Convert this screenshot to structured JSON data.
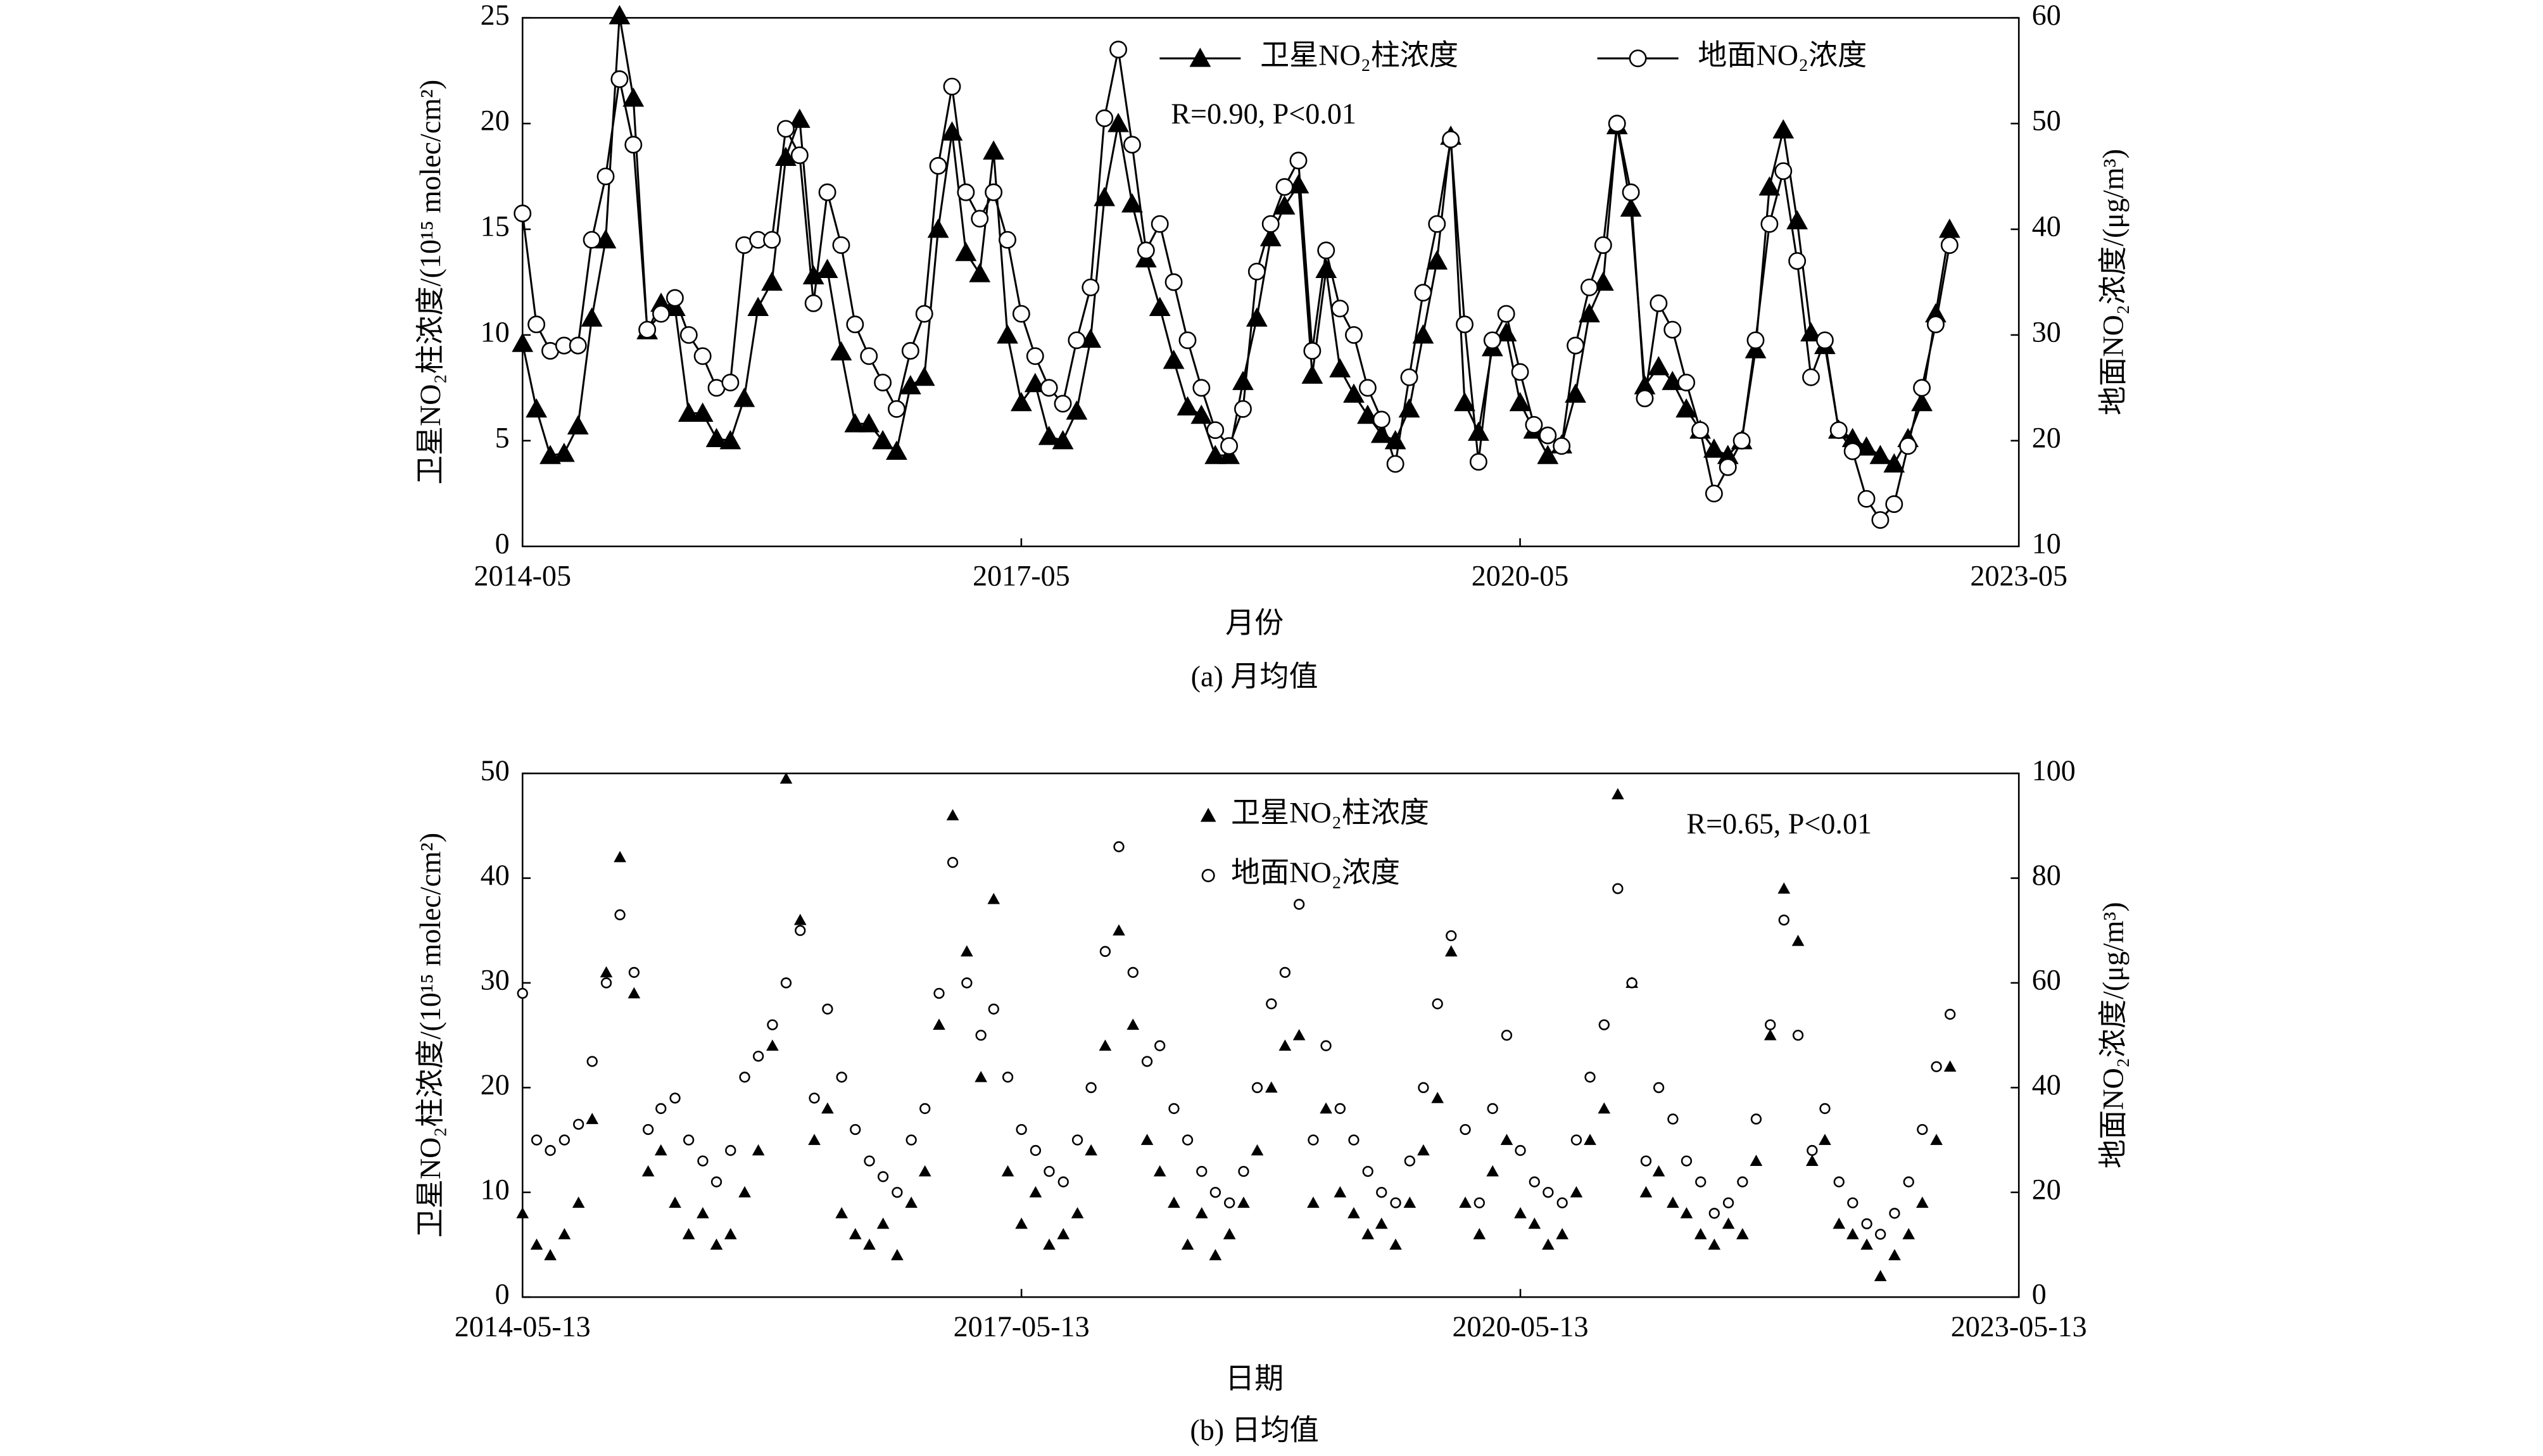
{
  "chart_data": [
    {
      "type": "line",
      "subtitle": "(a) 月均值",
      "xlabel": "月份",
      "ylabel": "卫星NO₂柱浓度/(10¹⁵ molec/cm²)",
      "y2label": "地面NO₂浓度/(μg/m³)",
      "annotation": "R=0.90, P<0.01",
      "legend": "upper center",
      "x": [
        "2014-05",
        "2014-06",
        "2014-07",
        "2014-08",
        "2014-09",
        "2014-10",
        "2014-11",
        "2014-12",
        "2015-01",
        "2015-02",
        "2015-03",
        "2015-04",
        "2015-05",
        "2015-06",
        "2015-07",
        "2015-08",
        "2015-09",
        "2015-10",
        "2015-11",
        "2015-12",
        "2016-01",
        "2016-02",
        "2016-03",
        "2016-04",
        "2016-05",
        "2016-06",
        "2016-07",
        "2016-08",
        "2016-09",
        "2016-10",
        "2016-11",
        "2016-12",
        "2017-01",
        "2017-02",
        "2017-03",
        "2017-04",
        "2017-05",
        "2017-06",
        "2017-07",
        "2017-08",
        "2017-09",
        "2017-10",
        "2017-11",
        "2017-12",
        "2018-01",
        "2018-02",
        "2018-03",
        "2018-04",
        "2018-05",
        "2018-06",
        "2018-07",
        "2018-08",
        "2018-09",
        "2018-10",
        "2018-11",
        "2018-12",
        "2019-01",
        "2019-02",
        "2019-03",
        "2019-04",
        "2019-05",
        "2019-06",
        "2019-07",
        "2019-08",
        "2019-09",
        "2019-10",
        "2019-11",
        "2019-12",
        "2020-01",
        "2020-02",
        "2020-03",
        "2020-04",
        "2020-05",
        "2020-06",
        "2020-07",
        "2020-08",
        "2020-09",
        "2020-10",
        "2020-11",
        "2020-12",
        "2021-01",
        "2021-02",
        "2021-03",
        "2021-04",
        "2021-05",
        "2021-06",
        "2021-07",
        "2021-08",
        "2021-09",
        "2021-10",
        "2021-11",
        "2021-12",
        "2022-01",
        "2022-02",
        "2022-03",
        "2022-04",
        "2022-05",
        "2022-06",
        "2022-07",
        "2022-08",
        "2022-09",
        "2022-10",
        "2022-11",
        "2022-12"
      ],
      "series": [
        {
          "name": "卫星NO₂柱浓度",
          "color": "#000000",
          "marker": "triangle",
          "values": [
            9.6,
            6.5,
            4.3,
            4.4,
            5.7,
            10.8,
            14.5,
            25.1,
            21.2,
            10.2,
            11.5,
            11.3,
            6.3,
            6.3,
            5.1,
            5.0,
            7.0,
            11.3,
            12.5,
            18.4,
            20.2,
            12.8,
            13.1,
            9.2,
            5.8,
            5.8,
            5.0,
            4.5,
            7.6,
            8.0,
            15.0,
            19.6,
            13.9,
            12.9,
            18.7,
            10.0,
            6.8,
            7.7,
            5.2,
            5.0,
            6.4,
            9.8,
            16.5,
            20.0,
            16.2,
            13.6,
            11.3,
            8.8,
            6.6,
            6.2,
            4.3,
            4.3,
            7.8,
            10.8,
            14.6,
            16.1,
            17.1,
            8.1,
            13.1,
            8.4,
            7.2,
            6.2,
            5.3,
            5.0,
            6.5,
            10.0,
            13.5,
            19.4,
            6.8,
            5.4,
            9.4,
            10.1,
            6.8,
            5.5,
            4.3,
            4.8,
            7.2,
            11.0,
            12.5,
            19.9,
            16.0,
            7.6,
            8.5,
            7.8,
            6.5,
            5.5,
            4.6,
            4.3,
            5.0,
            9.3,
            17.0,
            19.7,
            15.4,
            10.1,
            9.5,
            5.5,
            5.1,
            4.7,
            4.3,
            3.9,
            5.1,
            6.8,
            11.0,
            15.0
          ]
        },
        {
          "name": "地面NO₂浓度",
          "color": "#000000",
          "marker": "circle",
          "axis": "y2",
          "values": [
            41.5,
            31,
            28.5,
            29,
            29,
            39,
            45,
            54.2,
            48,
            30.5,
            32,
            33.5,
            30,
            28,
            25,
            25.5,
            38.5,
            39,
            39,
            49.5,
            47,
            33,
            43.5,
            38.5,
            31,
            28,
            25.5,
            23,
            28.5,
            32,
            46,
            53.5,
            43.5,
            41,
            43.5,
            39,
            32,
            28,
            25,
            23.5,
            29.5,
            34.5,
            50.5,
            57,
            48,
            38,
            40.5,
            35,
            29.5,
            25,
            21,
            19.5,
            23,
            36,
            40.5,
            44,
            46.5,
            28.5,
            38,
            32.5,
            30,
            25,
            22,
            17.8,
            26,
            34,
            40.5,
            48.5,
            31,
            18,
            29.5,
            32,
            26.5,
            21.5,
            20.5,
            19.5,
            29,
            34.5,
            38.5,
            50,
            43.5,
            24,
            33,
            30.5,
            25.5,
            21,
            15,
            17.5,
            20,
            29.5,
            40.5,
            45.5,
            37,
            26,
            29.5,
            21,
            19,
            14.5,
            12.5,
            14,
            19.5,
            25,
            31,
            38.5
          ]
        }
      ],
      "xlim": [
        "2014-05",
        "2023-05"
      ],
      "xticks": [
        "2014-05",
        "2017-05",
        "2020-05",
        "2023-05"
      ],
      "ylim": [
        0,
        25
      ],
      "yticks": [
        0,
        5,
        10,
        15,
        20,
        25
      ],
      "y2lim": [
        10,
        60
      ],
      "y2ticks": [
        10,
        20,
        30,
        40,
        50,
        60
      ]
    },
    {
      "type": "scatter",
      "subtitle": "(b) 日均值",
      "xlabel": "日期",
      "ylabel": "卫星NO₂柱浓度/(10¹⁵ molec/cm²)",
      "y2label": "地面NO₂浓度/(μg/m³)",
      "annotation": "R=0.65, P<0.01",
      "legend": "upper center",
      "x": [
        "2014-05-13",
        "2014-06-13",
        "2014-07-13",
        "2014-08-13",
        "2014-09-13",
        "2014-10-13",
        "2014-11-13",
        "2014-12-13",
        "2015-01-13",
        "2015-02-13",
        "2015-03-13",
        "2015-04-13",
        "2015-05-13",
        "2015-06-13",
        "2015-07-13",
        "2015-08-13",
        "2015-09-13",
        "2015-10-13",
        "2015-11-13",
        "2015-12-13",
        "2016-01-13",
        "2016-02-13",
        "2016-03-13",
        "2016-04-13",
        "2016-05-13",
        "2016-06-13",
        "2016-07-13",
        "2016-08-13",
        "2016-09-13",
        "2016-10-13",
        "2016-11-13",
        "2016-12-13",
        "2017-01-13",
        "2017-02-13",
        "2017-03-13",
        "2017-04-13",
        "2017-05-13",
        "2017-06-13",
        "2017-07-13",
        "2017-08-13",
        "2017-09-13",
        "2017-10-13",
        "2017-11-13",
        "2017-12-13",
        "2018-01-13",
        "2018-02-13",
        "2018-03-13",
        "2018-04-13",
        "2018-05-13",
        "2018-06-13",
        "2018-07-13",
        "2018-08-13",
        "2018-09-13",
        "2018-10-13",
        "2018-11-13",
        "2018-12-13",
        "2019-01-13",
        "2019-02-13",
        "2019-03-13",
        "2019-04-13",
        "2019-05-13",
        "2019-06-13",
        "2019-07-13",
        "2019-08-13",
        "2019-09-13",
        "2019-10-13",
        "2019-11-13",
        "2019-12-13",
        "2020-01-13",
        "2020-02-13",
        "2020-03-13",
        "2020-04-13",
        "2020-05-13",
        "2020-06-13",
        "2020-07-13",
        "2020-08-13",
        "2020-09-13",
        "2020-10-13",
        "2020-11-13",
        "2020-12-13",
        "2021-01-13",
        "2021-02-13",
        "2021-03-13",
        "2021-04-13",
        "2021-05-13",
        "2021-06-13",
        "2021-07-13",
        "2021-08-13",
        "2021-09-13",
        "2021-10-13",
        "2021-11-13",
        "2021-12-13",
        "2022-01-13",
        "2022-02-13",
        "2022-03-13",
        "2022-04-13",
        "2022-05-13",
        "2022-06-13",
        "2022-07-13",
        "2022-08-13",
        "2022-09-13",
        "2022-10-13",
        "2022-11-13",
        "2022-12-13"
      ],
      "series": [
        {
          "name": "卫星NO₂柱浓度",
          "color": "#000000",
          "marker": "triangle",
          "values": [
            8,
            5,
            4,
            6,
            9,
            17,
            31,
            42,
            29,
            12,
            14,
            9,
            6,
            8,
            5,
            6,
            10,
            14,
            24,
            49.5,
            36,
            15,
            18,
            8,
            6,
            5,
            7,
            4,
            9,
            12,
            26,
            46,
            33,
            21,
            38,
            12,
            7,
            10,
            5,
            6,
            8,
            14,
            24,
            35,
            26,
            15,
            12,
            9,
            5,
            8,
            4,
            6,
            9,
            14,
            20,
            24,
            25,
            9,
            18,
            10,
            8,
            6,
            7,
            5,
            9,
            14,
            19,
            33,
            9,
            6,
            12,
            15,
            8,
            7,
            5,
            6,
            10,
            15,
            18,
            48,
            30,
            10,
            12,
            9,
            8,
            6,
            5,
            7,
            6,
            13,
            25,
            39,
            34,
            13,
            15,
            7,
            6,
            5,
            2,
            4,
            6,
            9,
            15,
            22
          ]
        },
        {
          "name": "地面NO₂浓度",
          "color": "#000000",
          "marker": "circle",
          "axis": "y2",
          "values": [
            58,
            30,
            28,
            30,
            33,
            45,
            60,
            73,
            62,
            32,
            36,
            38,
            30,
            26,
            22,
            28,
            42,
            46,
            52,
            60,
            70,
            38,
            55,
            42,
            32,
            26,
            23,
            20,
            30,
            36,
            58,
            83,
            60,
            50,
            55,
            42,
            32,
            28,
            24,
            22,
            30,
            40,
            66,
            86,
            62,
            45,
            48,
            36,
            30,
            24,
            20,
            18,
            24,
            40,
            56,
            62,
            75,
            30,
            48,
            36,
            30,
            24,
            20,
            18,
            26,
            40,
            56,
            69,
            32,
            18,
            36,
            50,
            28,
            22,
            20,
            18,
            30,
            42,
            52,
            78,
            60,
            26,
            40,
            34,
            26,
            22,
            16,
            18,
            22,
            34,
            52,
            72,
            50,
            28,
            36,
            22,
            18,
            14,
            12,
            16,
            22,
            32,
            44,
            54
          ]
        }
      ],
      "xlim": [
        "2014-05-13",
        "2023-05-13"
      ],
      "xticks": [
        "2014-05-13",
        "2017-05-13",
        "2020-05-13",
        "2023-05-13"
      ],
      "ylim": [
        0,
        50
      ],
      "yticks": [
        0,
        10,
        20,
        30,
        40,
        50
      ],
      "y2lim": [
        0,
        100
      ],
      "y2ticks": [
        0,
        20,
        40,
        60,
        80,
        100
      ]
    }
  ]
}
